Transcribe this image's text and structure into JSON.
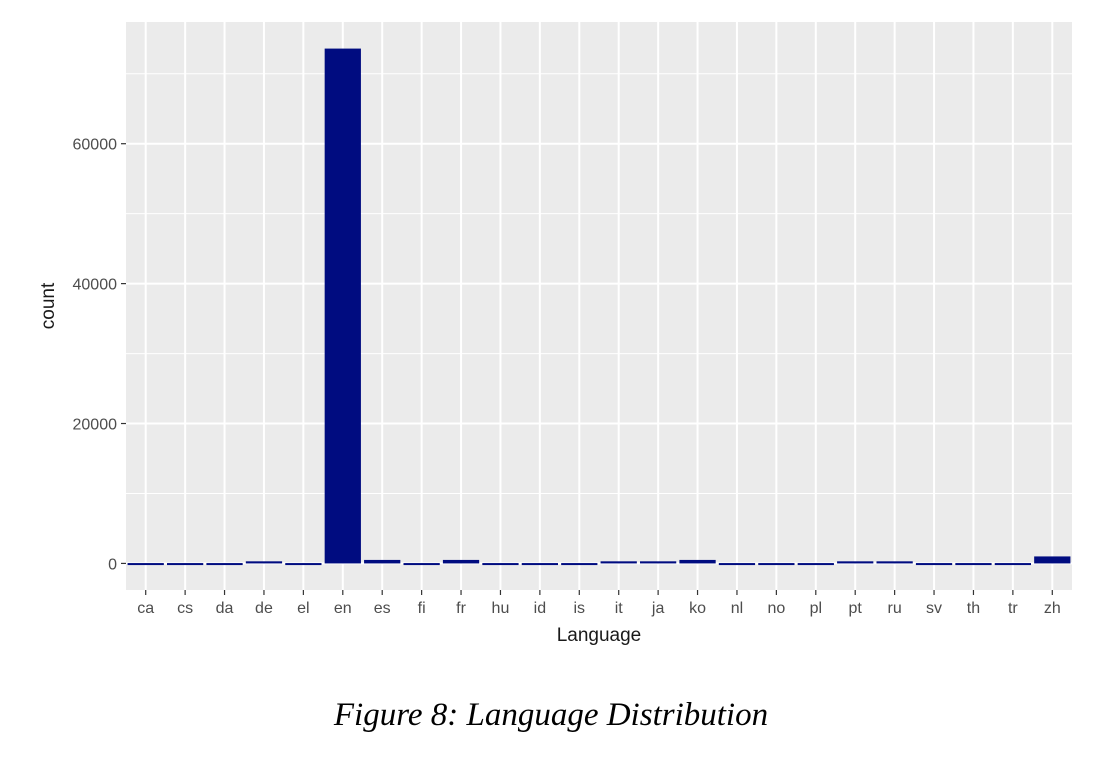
{
  "caption": "Figure 8: Language Distribution",
  "colors": {
    "panel": "#ebebeb",
    "grid": "#ffffff",
    "bar": "#000c80",
    "tick": "#333333"
  },
  "chart_data": {
    "type": "bar",
    "xlabel": "Language",
    "ylabel": "count",
    "categories": [
      "ca",
      "cs",
      "da",
      "de",
      "el",
      "en",
      "es",
      "fi",
      "fr",
      "hu",
      "id",
      "is",
      "it",
      "ja",
      "ko",
      "nl",
      "no",
      "pl",
      "pt",
      "ru",
      "sv",
      "th",
      "tr",
      "zh"
    ],
    "values": [
      50,
      50,
      50,
      300,
      50,
      73600,
      500,
      50,
      500,
      50,
      50,
      50,
      300,
      300,
      500,
      50,
      50,
      50,
      300,
      300,
      50,
      50,
      50,
      1000
    ],
    "yticks": [
      0,
      20000,
      40000,
      60000
    ],
    "ylim": [
      -3800,
      77400
    ],
    "grid": true,
    "legend": "none"
  }
}
